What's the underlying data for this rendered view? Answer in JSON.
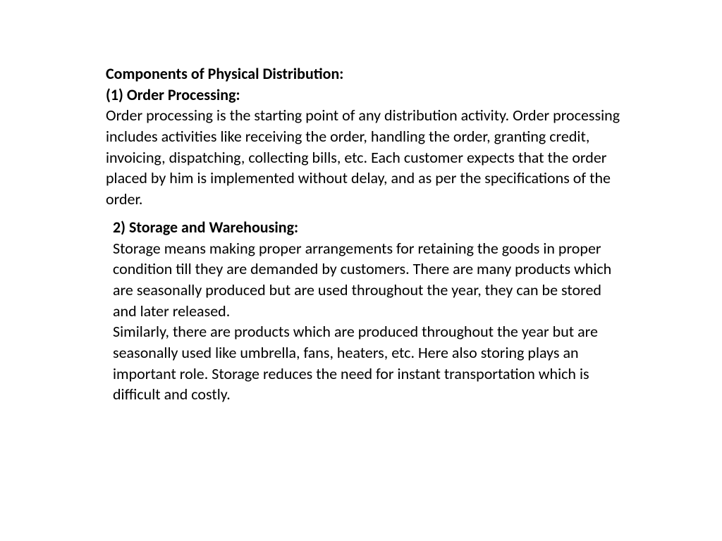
{
  "document": {
    "main_heading": "Components of Physical Distribution:",
    "section1": {
      "heading": "(1) Order Processing:",
      "body": "Order processing is the starting point of any distribution activity. Order processing includes activities like receiving the order, handling the order, granting credit, invoicing, dispatching, collecting bills, etc. Each customer expects that the order placed by him is implemented without delay, and as per the specifications of the order."
    },
    "section2": {
      "heading": "2) Storage and Warehousing:",
      "body_p1": "Storage means making proper arrangements for retaining the goods in proper condition till they are demanded by customers. There are many products which are seasonally produced but are used throughout the year, they can be stored and later released.",
      "body_p2": "Similarly, there are products which are produced throughout the year but are seasonally used like umbrella, fans, heaters, etc. Here also storing plays an important role. Storage reduces the need for instant transportation which is difficult and costly."
    }
  },
  "styles": {
    "background_color": "#ffffff",
    "text_color": "#000000",
    "font_family": "Calibri, Arial, sans-serif",
    "heading_fontsize": 22,
    "body_fontsize": 22,
    "heading_weight": "bold",
    "body_weight": "normal",
    "line_height": 1.35
  }
}
